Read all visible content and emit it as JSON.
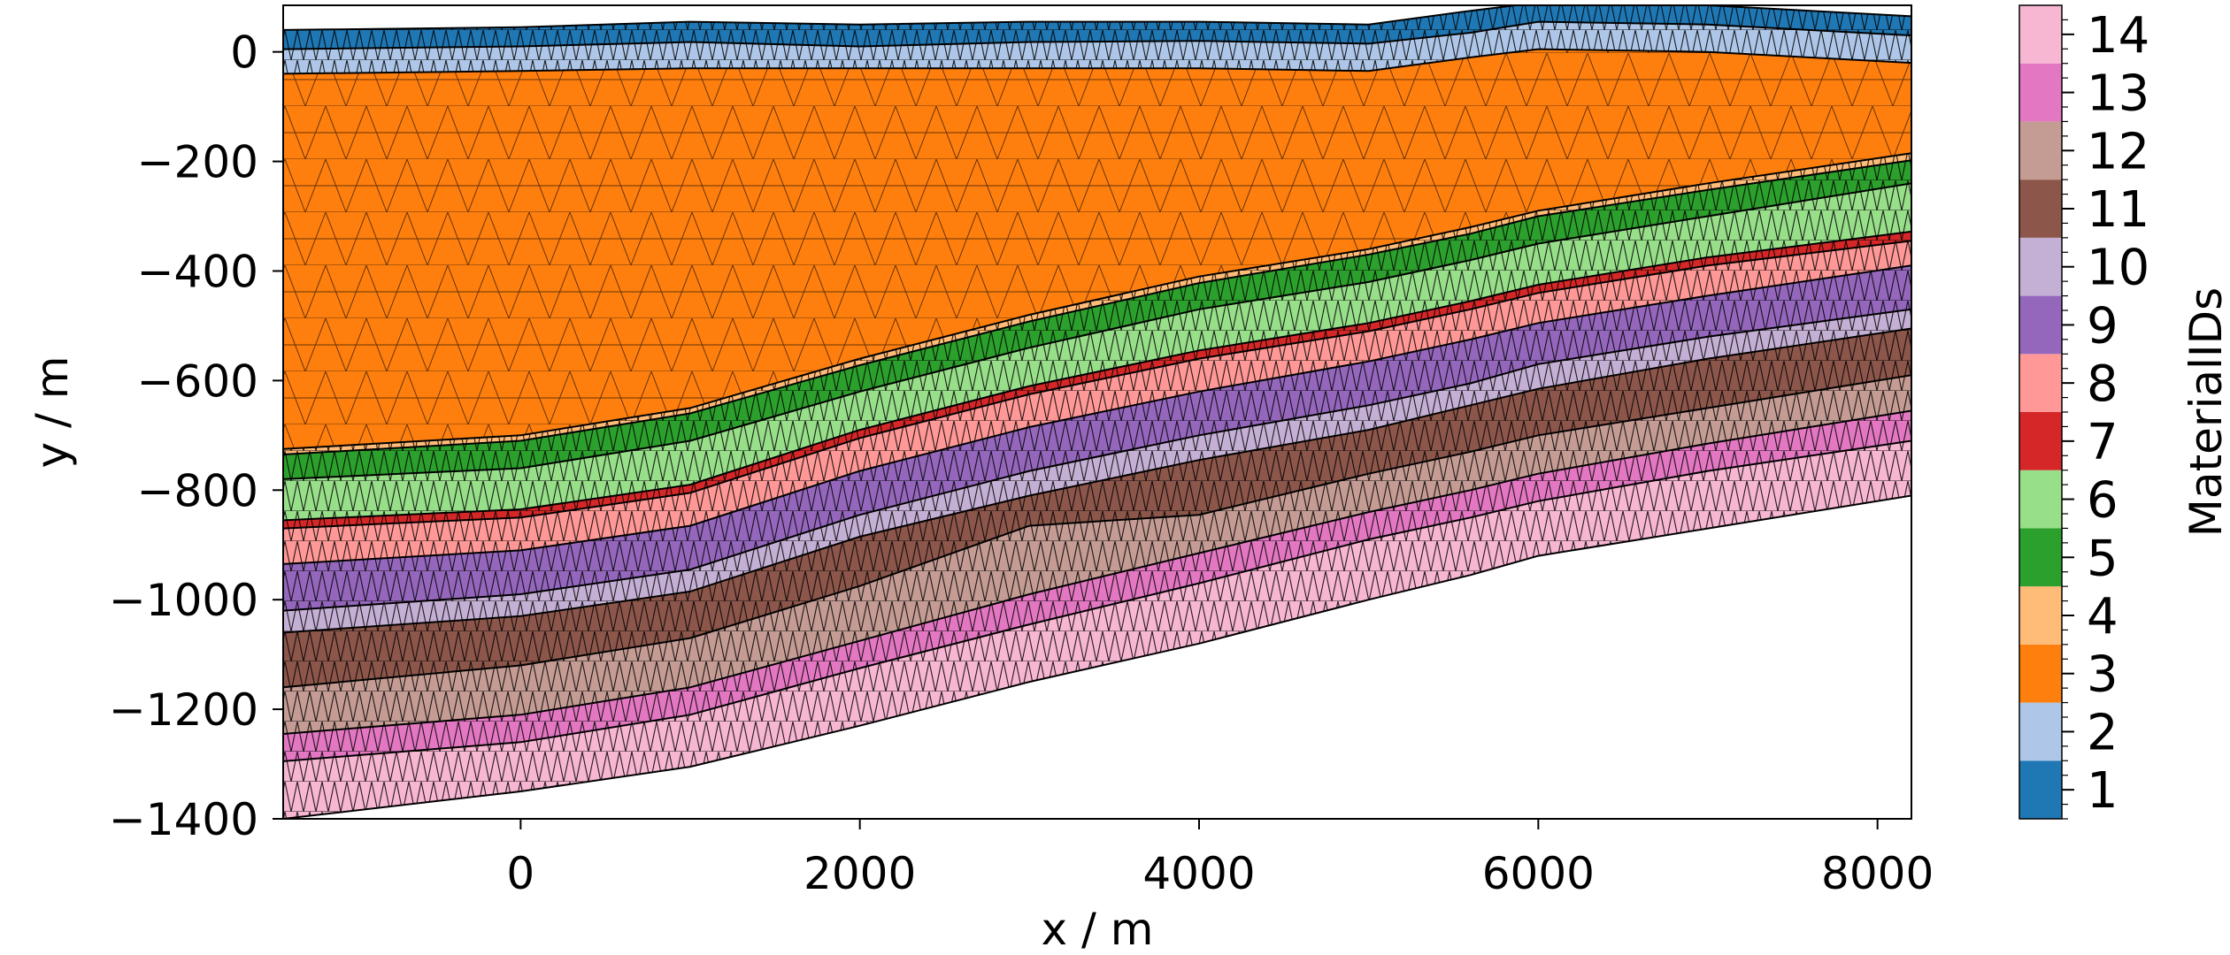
{
  "chart_data": {
    "type": "mesh-section",
    "xlabel": "x / m",
    "ylabel": "y / m",
    "xlim": [
      -1400,
      8200
    ],
    "ylim": [
      -1400,
      85
    ],
    "xticks": [
      0,
      2000,
      4000,
      6000,
      8000
    ],
    "yticks": [
      0,
      -200,
      -400,
      -600,
      -800,
      -1000,
      -1200,
      -1400
    ],
    "xtick_labels": [
      "0",
      "2000",
      "4000",
      "6000",
      "8000"
    ],
    "ytick_labels": [
      "0",
      "−200",
      "−400",
      "−600",
      "−800",
      "−1000",
      "−1200",
      "−1400"
    ],
    "grid": false,
    "colorbar": {
      "label": "MaterialIDs",
      "position": "right",
      "ticks": [
        "1",
        "2",
        "3",
        "4",
        "5",
        "6",
        "7",
        "8",
        "9",
        "10",
        "11",
        "12",
        "13",
        "14"
      ],
      "colors": [
        "#1f77b4",
        "#aec7e8",
        "#ff7f0e",
        "#ffbb78",
        "#2ca02c",
        "#98df8a",
        "#d62728",
        "#ff9896",
        "#9467bd",
        "#c5b0d5",
        "#8c564b",
        "#c49c94",
        "#e377c2",
        "#f7b6d2"
      ]
    },
    "x_samples": [
      -1400,
      0,
      1000,
      2000,
      3000,
      4000,
      5000,
      5600,
      6000,
      7000,
      8200
    ],
    "interfaces": [
      {
        "top_of": 1,
        "y": [
          40,
          45,
          55,
          50,
          55,
          55,
          50,
          75,
          90,
          85,
          65
        ]
      },
      {
        "top_of": 2,
        "y": [
          5,
          10,
          18,
          10,
          18,
          20,
          15,
          35,
          55,
          50,
          30
        ]
      },
      {
        "top_of": 3,
        "y": [
          -40,
          -35,
          -30,
          -30,
          -30,
          -30,
          -35,
          -10,
          5,
          0,
          -20
        ]
      },
      {
        "top_of": 4,
        "y": [
          -725,
          -700,
          -650,
          -560,
          -480,
          -410,
          -360,
          -320,
          -290,
          -240,
          -185
        ]
      },
      {
        "top_of": 5,
        "y": [
          -735,
          -710,
          -660,
          -572,
          -492,
          -422,
          -370,
          -332,
          -300,
          -252,
          -198
        ]
      },
      {
        "top_of": 6,
        "y": [
          -780,
          -760,
          -710,
          -620,
          -540,
          -470,
          -420,
          -380,
          -350,
          -300,
          -240
        ]
      },
      {
        "top_of": 7,
        "y": [
          -855,
          -835,
          -790,
          -690,
          -610,
          -545,
          -495,
          -455,
          -425,
          -375,
          -328
        ]
      },
      {
        "top_of": 8,
        "y": [
          -870,
          -850,
          -805,
          -705,
          -625,
          -560,
          -510,
          -470,
          -440,
          -390,
          -345
        ]
      },
      {
        "top_of": 9,
        "y": [
          -935,
          -910,
          -865,
          -765,
          -685,
          -620,
          -565,
          -525,
          -495,
          -445,
          -390
        ]
      },
      {
        "top_of": 10,
        "y": [
          -1020,
          -990,
          -945,
          -845,
          -765,
          -700,
          -645,
          -605,
          -570,
          -520,
          -470
        ]
      },
      {
        "top_of": 11,
        "y": [
          -1060,
          -1030,
          -985,
          -885,
          -810,
          -745,
          -690,
          -645,
          -615,
          -560,
          -505
        ]
      },
      {
        "top_of": 12,
        "y": [
          -1160,
          -1120,
          -1070,
          -975,
          -865,
          -845,
          -770,
          -730,
          -700,
          -650,
          -590
        ]
      },
      {
        "top_of": 13,
        "y": [
          -1245,
          -1210,
          -1160,
          -1075,
          -990,
          -915,
          -840,
          -800,
          -770,
          -715,
          -655
        ]
      },
      {
        "top_of": 14,
        "y": [
          -1295,
          -1260,
          -1210,
          -1125,
          -1045,
          -970,
          -890,
          -850,
          -820,
          -765,
          -710
        ]
      },
      {
        "bottom": true,
        "y": [
          -1400,
          -1350,
          -1305,
          -1230,
          -1150,
          -1080,
          -1000,
          -955,
          -920,
          -870,
          -810
        ]
      }
    ]
  }
}
